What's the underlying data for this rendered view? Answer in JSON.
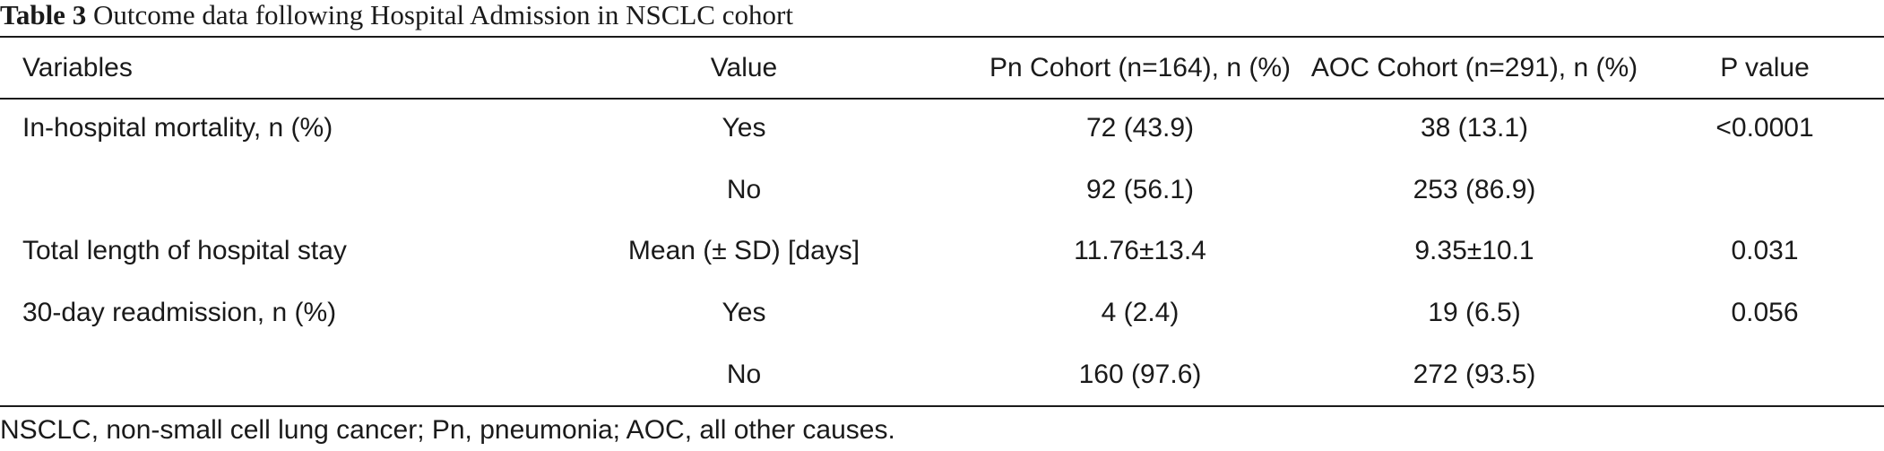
{
  "caption": {
    "label": "Table 3",
    "text": "Outcome data following Hospital Admission in NSCLC cohort"
  },
  "table": {
    "headers": [
      "Variables",
      "Value",
      "Pn Cohort (n=164), n (%)",
      "AOC Cohort (n=291), n (%)",
      "P value"
    ],
    "rows": [
      [
        "In-hospital mortality, n (%)",
        "Yes",
        "72 (43.9)",
        "38 (13.1)",
        "<0.0001"
      ],
      [
        "",
        "No",
        "92 (56.1)",
        "253 (86.9)",
        ""
      ],
      [
        "Total length of hospital stay",
        "Mean (± SD) [days]",
        "11.76±13.4",
        "9.35±10.1",
        "0.031"
      ],
      [
        "30-day readmission, n (%)",
        "Yes",
        "4 (2.4)",
        "19 (6.5)",
        "0.056"
      ],
      [
        "",
        "No",
        "160 (97.6)",
        "272 (93.5)",
        ""
      ]
    ]
  },
  "footnote": "NSCLC, non-small cell lung cancer; Pn, pneumonia; AOC, all other causes."
}
